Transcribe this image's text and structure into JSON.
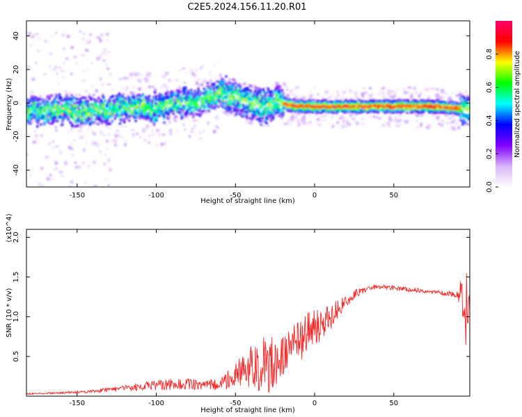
{
  "title": "C2E5.2024.156.11.20.R01",
  "chart_data": [
    {
      "type": "heatmap",
      "xlabel": "Height of straight line (km)",
      "ylabel": "Frequency (Hz)",
      "xlim": [
        -182,
        98
      ],
      "ylim": [
        -50,
        49
      ],
      "xticks": [
        -150,
        -100,
        -50,
        0,
        50
      ],
      "yticks": [
        -40,
        -20,
        0,
        20,
        40
      ],
      "grid": false,
      "ridge": {
        "x": [
          -182,
          -160,
          -140,
          -120,
          -100,
          -80,
          -70,
          -60,
          -50,
          -40,
          -32,
          -28,
          -24,
          -20,
          -10,
          0,
          20,
          50,
          80,
          95
        ],
        "y": [
          -5,
          -4,
          -5,
          -3,
          -3,
          0,
          2,
          5,
          3,
          0,
          -2,
          0,
          2,
          0,
          -2,
          -2,
          -2,
          -2,
          -2,
          -4
        ]
      },
      "colorbar": {
        "label": "Normalized spectral amplitude",
        "range": [
          0.0,
          1.0
        ],
        "ticks": [
          "0.0",
          "0.2",
          "0.4",
          "0.6",
          "0.8"
        ],
        "colormap": [
          "#ffffff",
          "#d8b4f8",
          "#8000ff",
          "#0000ff",
          "#00ffff",
          "#00ff00",
          "#ffff00",
          "#ff0000",
          "#ff0066"
        ]
      }
    },
    {
      "type": "line",
      "xlabel": "Height of straight line (km)",
      "ylabel": "SNR (10 * v/v)",
      "y_multiplier": "(x10^4)",
      "xlim": [
        -182,
        98
      ],
      "ylim": [
        0.0,
        2.1
      ],
      "xticks": [
        -150,
        -100,
        -50,
        0,
        50
      ],
      "yticks": [
        0.5,
        1.0,
        1.5,
        2.0
      ],
      "grid": false,
      "series": [
        {
          "color": "#ff2020",
          "x": [
            -182,
            -160,
            -140,
            -130,
            -120,
            -110,
            -100,
            -90,
            -80,
            -70,
            -60,
            -55,
            -50,
            -45,
            -40,
            -35,
            -30,
            -25,
            -20,
            -15,
            -10,
            -5,
            0,
            5,
            10,
            15,
            20,
            25,
            30,
            35,
            40,
            50,
            60,
            70,
            80,
            90,
            94,
            96,
            98
          ],
          "y": [
            0.03,
            0.04,
            0.06,
            0.08,
            0.1,
            0.12,
            0.14,
            0.15,
            0.15,
            0.14,
            0.16,
            0.2,
            0.26,
            0.32,
            0.36,
            0.4,
            0.42,
            0.45,
            0.5,
            0.6,
            0.7,
            0.78,
            0.86,
            0.9,
            1.0,
            1.1,
            1.2,
            1.28,
            1.33,
            1.36,
            1.38,
            1.36,
            1.34,
            1.32,
            1.3,
            1.28,
            1.25,
            1.15,
            1.22
          ],
          "noise": [
            0.01,
            0.015,
            0.02,
            0.03,
            0.04,
            0.05,
            0.06,
            0.07,
            0.07,
            0.06,
            0.08,
            0.12,
            0.15,
            0.22,
            0.28,
            0.35,
            0.4,
            0.35,
            0.3,
            0.3,
            0.28,
            0.28,
            0.22,
            0.2,
            0.18,
            0.12,
            0.08,
            0.06,
            0.05,
            0.04,
            0.03,
            0.03,
            0.03,
            0.03,
            0.03,
            0.04,
            0.35,
            0.6,
            0.2
          ]
        }
      ]
    }
  ]
}
